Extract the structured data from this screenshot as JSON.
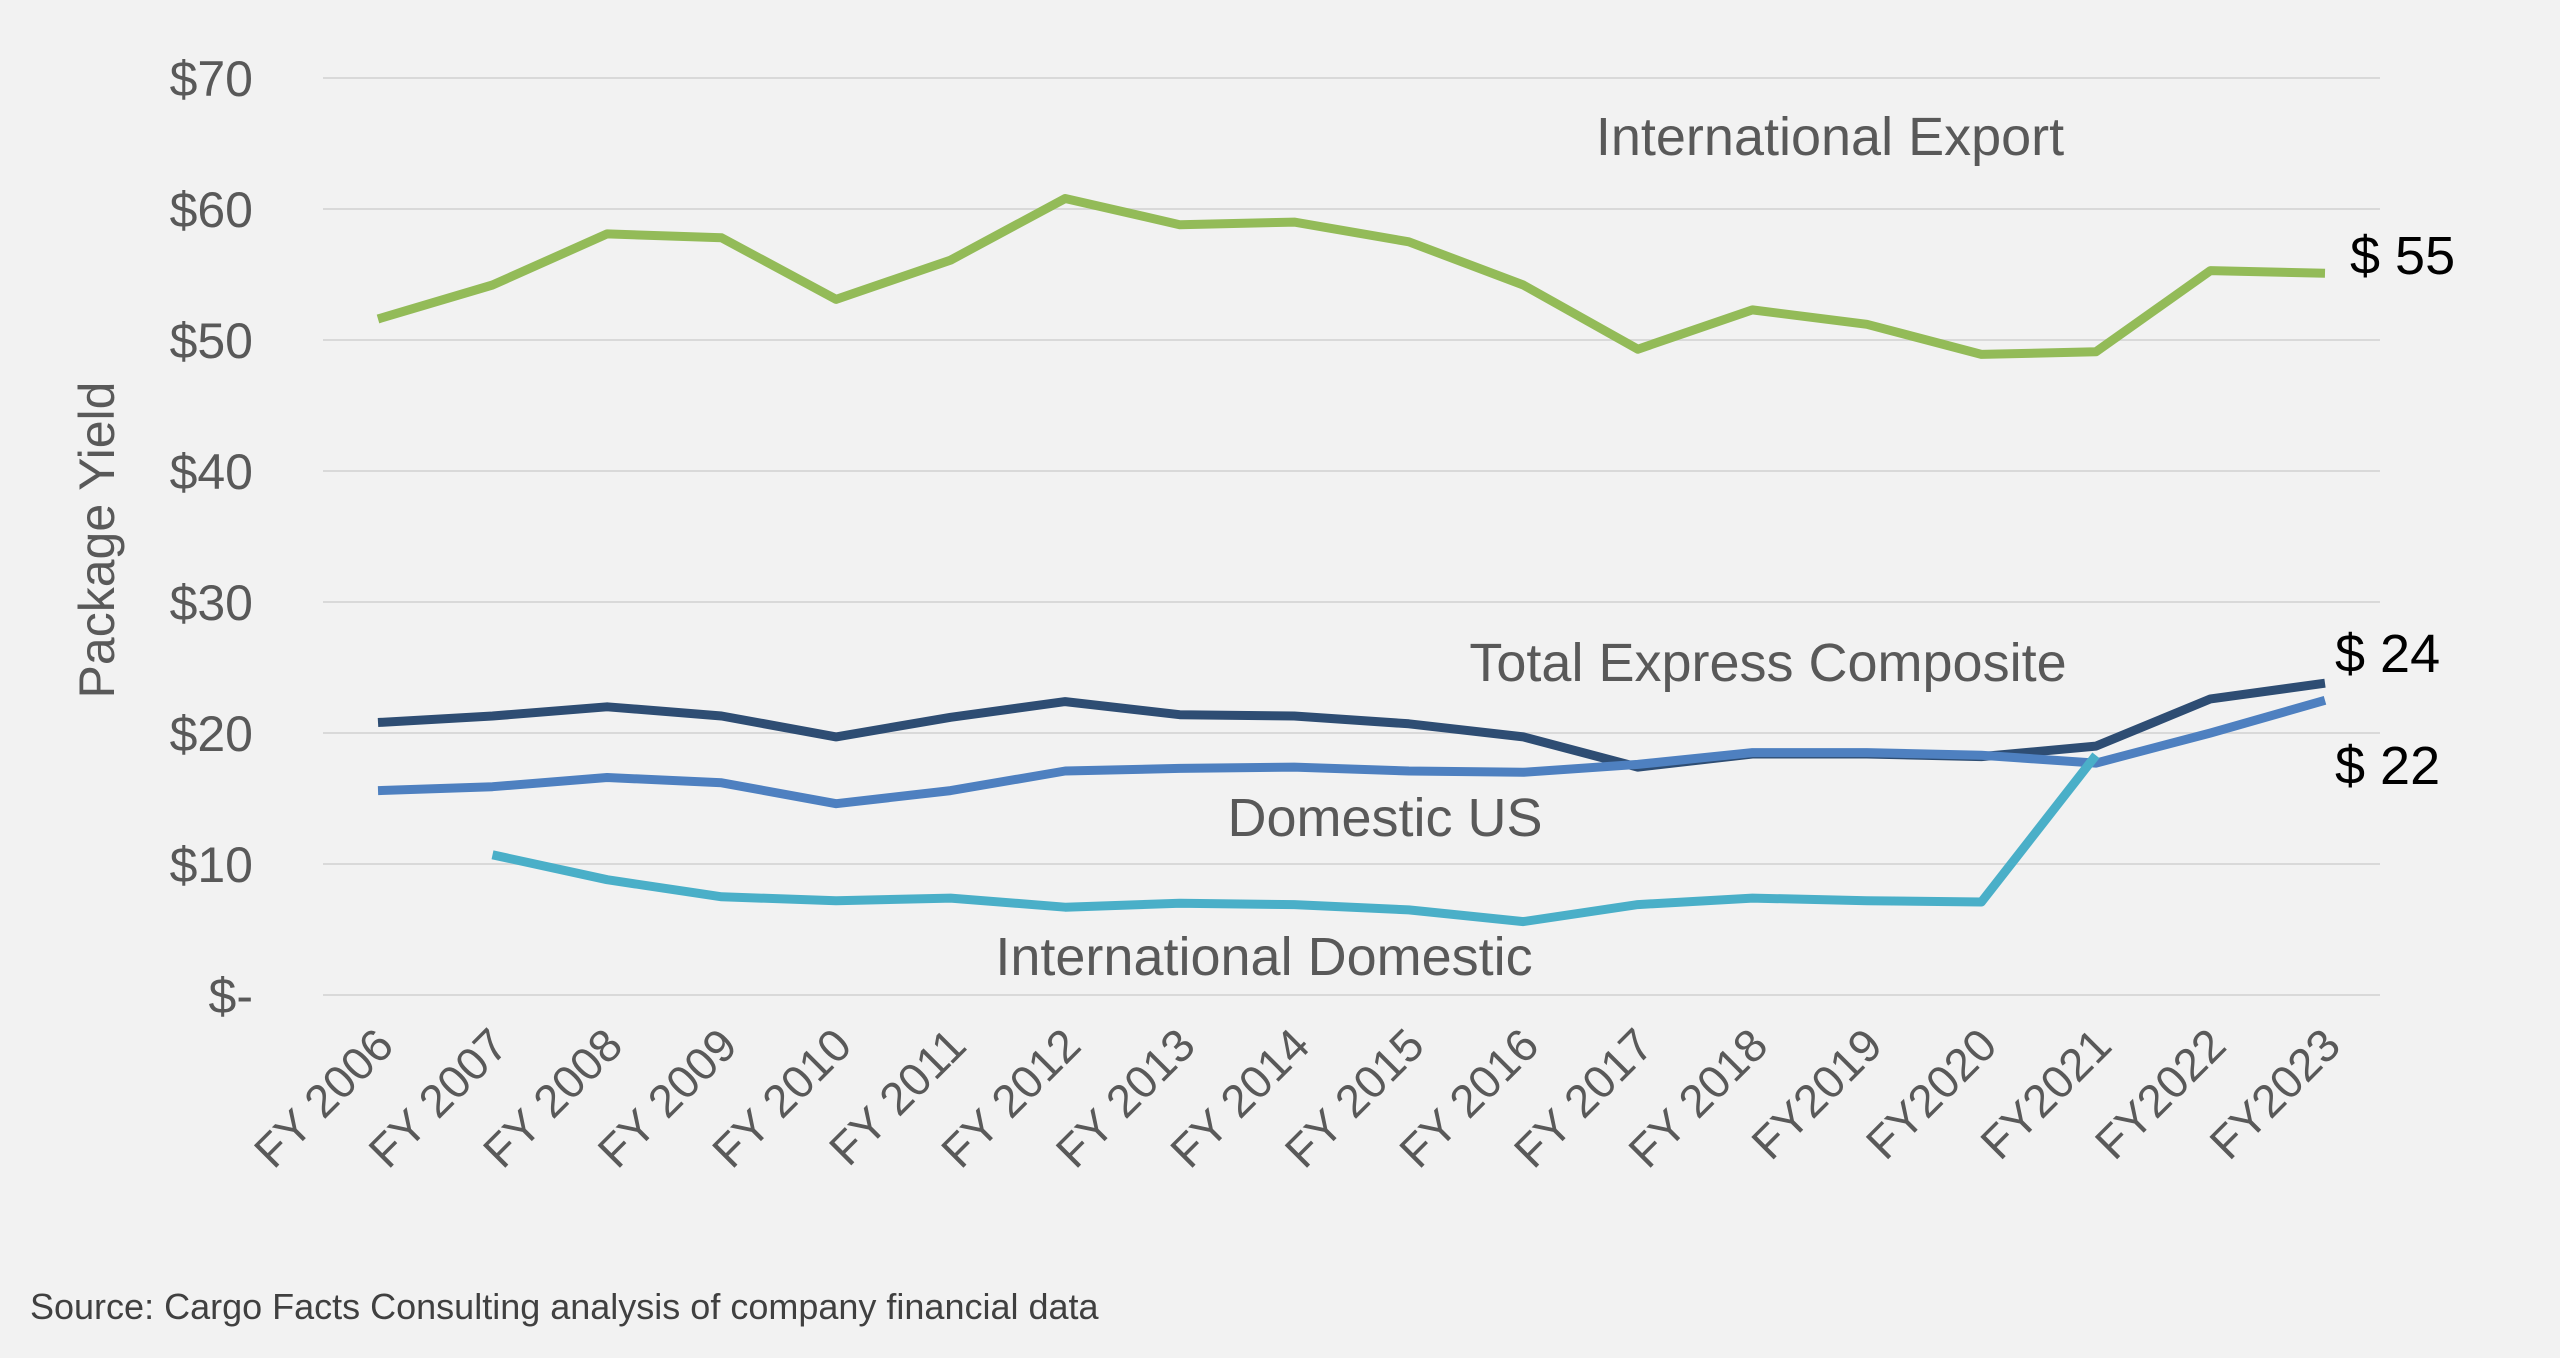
{
  "chart_data": {
    "type": "line",
    "ylabel": "Package Yield",
    "xlabel": "",
    "ylim": [
      0,
      70
    ],
    "y_ticks": [
      {
        "value": 70,
        "label": "$70"
      },
      {
        "value": 60,
        "label": "$60"
      },
      {
        "value": 50,
        "label": "$50"
      },
      {
        "value": 40,
        "label": "$40"
      },
      {
        "value": 30,
        "label": "$30"
      },
      {
        "value": 20,
        "label": "$20"
      },
      {
        "value": 10,
        "label": "$10"
      },
      {
        "value": 0,
        "label": "$-"
      }
    ],
    "grid": true,
    "categories": [
      "FY 2006",
      "FY 2007",
      "FY 2008",
      "FY 2009",
      "FY 2010",
      "FY 2011",
      "FY 2012",
      "FY 2013",
      "FY 2014",
      "FY 2015",
      "FY 2016",
      "FY 2017",
      "FY 2018",
      "FY2019",
      "FY2020",
      "FY2021",
      "FY2022",
      "FY2023"
    ],
    "series": [
      {
        "name": "International Export",
        "color": "#93bb58",
        "values": [
          51.6,
          54.2,
          58.1,
          57.8,
          53.1,
          56.1,
          60.8,
          58.8,
          59.0,
          57.5,
          54.2,
          49.3,
          52.3,
          51.2,
          48.9,
          49.1,
          55.3,
          55.1
        ],
        "end_label": "$ 55"
      },
      {
        "name": "Total Express Composite",
        "color": "#2e4d73",
        "values": [
          20.8,
          21.3,
          22.0,
          21.3,
          19.7,
          21.2,
          22.4,
          21.4,
          21.3,
          20.7,
          19.7,
          17.4,
          18.4,
          18.4,
          18.2,
          19.0,
          22.6,
          23.8
        ],
        "end_label": "$ 24"
      },
      {
        "name": "Domestic US",
        "color": "#4e80c0",
        "values": [
          15.6,
          15.9,
          16.6,
          16.2,
          14.6,
          15.6,
          17.1,
          17.3,
          17.4,
          17.1,
          17.0,
          17.6,
          18.5,
          18.5,
          18.3,
          17.7,
          20.0,
          22.5
        ],
        "end_label": "$ 22"
      },
      {
        "name": "International Domestic",
        "color": "#4aafc8",
        "values": [
          null,
          10.7,
          8.8,
          7.5,
          7.2,
          7.4,
          6.7,
          7.0,
          6.9,
          6.5,
          5.6,
          6.9,
          7.4,
          7.2,
          7.1,
          18.3,
          null,
          null
        ],
        "end_label": ""
      }
    ]
  },
  "source": "Source: Cargo Facts Consulting analysis of company financial data"
}
